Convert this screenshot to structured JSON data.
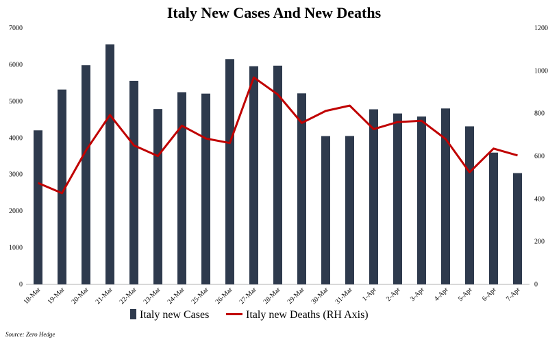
{
  "title": "Italy New Cases And New Deaths",
  "source": "Source: Zero Hedge",
  "colors": {
    "bars": "#2e3a4d",
    "line": "#c00000",
    "background": "#ffffff"
  },
  "chart_data": {
    "type": "bar",
    "title": "Italy New Cases And New Deaths",
    "categories": [
      "18-Mar",
      "19-Mar",
      "20-Mar",
      "21-Mar",
      "22-Mar",
      "23-Mar",
      "24-Mar",
      "25-Mar",
      "26-Mar",
      "27-Mar",
      "28-Mar",
      "29-Mar",
      "30-Mar",
      "31-Mar",
      "1-Apr",
      "2-Apr",
      "3-Apr",
      "4-Apr",
      "5-Apr",
      "6-Apr",
      "7-Apr"
    ],
    "series": [
      {
        "name": "Italy new Cases",
        "type": "bar",
        "axis": "left",
        "values": [
          4207,
          5322,
          5986,
          6557,
          5560,
          4789,
          5249,
          5210,
          6153,
          5959,
          5974,
          5217,
          4050,
          4053,
          4782,
          4668,
          4585,
          4805,
          4316,
          3599,
          3039
        ]
      },
      {
        "name": "Italy new Deaths (RH Axis)",
        "type": "line",
        "axis": "right",
        "values": [
          475,
          427,
          627,
          793,
          651,
          601,
          743,
          683,
          662,
          969,
          889,
          756,
          812,
          837,
          727,
          760,
          766,
          681,
          525,
          636,
          604
        ]
      }
    ],
    "ylim": [
      0,
      7000
    ],
    "y2lim": [
      0,
      1200
    ],
    "yticks": [
      0,
      1000,
      2000,
      3000,
      4000,
      5000,
      6000,
      7000
    ],
    "y2ticks": [
      0,
      200,
      400,
      600,
      800,
      1000,
      1200
    ],
    "grid": false,
    "legend": "bottom"
  }
}
